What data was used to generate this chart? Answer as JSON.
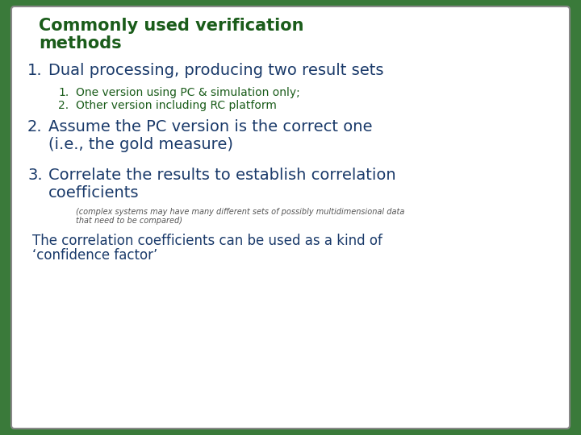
{
  "title_line1": "Commonly used verification",
  "title_line2": "methods",
  "title_color": "#1a5c1a",
  "title_fontsize": 15,
  "background_color": "#ffffff",
  "border_color": "#888888",
  "outer_bg_color": "#3a7a3a",
  "item1_text": "Dual processing, producing two result sets",
  "item1_color": "#1a3a6a",
  "item1_fontsize": 14,
  "sub1_text": "One version using PC & simulation only;",
  "sub2_text": "Other version including RC platform",
  "sub_color": "#1a5c1a",
  "sub_fontsize": 10,
  "item2_line1": "Assume the PC version is the correct one",
  "item2_line2": "(i.e., the gold measure)",
  "item2_color": "#1a3a6a",
  "item2_fontsize": 14,
  "item3_line1": "Correlate the results to establish correlation",
  "item3_line2": "coefficients",
  "item3_color": "#1a3a6a",
  "item3_fontsize": 14,
  "note_line1": "(complex systems may have many different sets of possibly multidimensional data",
  "note_line2": "that need to be compared)",
  "note_color": "#555555",
  "note_fontsize": 7,
  "footer_line1": "The correlation coefficients can be used as a kind of",
  "footer_line2": "‘confidence factor’",
  "footer_color": "#1a3a6a",
  "footer_fontsize": 12
}
